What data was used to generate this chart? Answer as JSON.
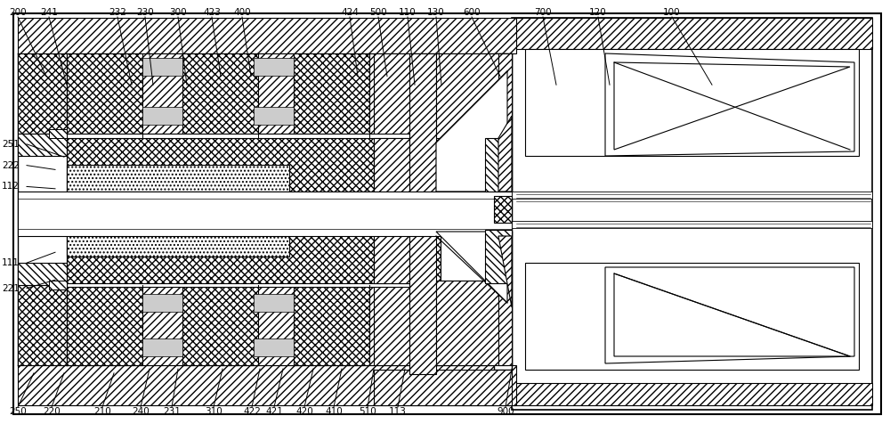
{
  "figure_width": 10.0,
  "figure_height": 4.76,
  "dpi": 100,
  "bg_color": "#ffffff",
  "lc": "#000000",
  "top_labels": [
    {
      "text": "200",
      "xl": 0.02,
      "xt": 0.03,
      "yt": 0.88
    },
    {
      "text": "241",
      "xl": 0.055,
      "xt": 0.065,
      "yt": 0.88
    },
    {
      "text": "232",
      "xl": 0.132,
      "xt": 0.138,
      "yt": 0.88
    },
    {
      "text": "230",
      "xl": 0.163,
      "xt": 0.168,
      "yt": 0.88
    },
    {
      "text": "300",
      "xl": 0.2,
      "xt": 0.205,
      "yt": 0.88
    },
    {
      "text": "423",
      "xl": 0.238,
      "xt": 0.243,
      "yt": 0.88
    },
    {
      "text": "400",
      "xl": 0.272,
      "xt": 0.278,
      "yt": 0.88
    },
    {
      "text": "424",
      "xl": 0.393,
      "xt": 0.398,
      "yt": 0.88
    },
    {
      "text": "500",
      "xl": 0.425,
      "xt": 0.43,
      "yt": 0.88
    },
    {
      "text": "110",
      "xl": 0.458,
      "xt": 0.462,
      "yt": 0.88
    },
    {
      "text": "130",
      "xl": 0.49,
      "xt": 0.493,
      "yt": 0.88
    },
    {
      "text": "600",
      "xl": 0.53,
      "xt": 0.535,
      "yt": 0.88
    },
    {
      "text": "700",
      "xl": 0.61,
      "xt": 0.613,
      "yt": 0.88
    },
    {
      "text": "120",
      "xl": 0.672,
      "xt": 0.675,
      "yt": 0.88
    },
    {
      "text": "100",
      "xl": 0.755,
      "xt": 0.76,
      "yt": 0.88
    }
  ],
  "left_labels": [
    {
      "text": "251",
      "xl": 0.002,
      "yl": 0.68,
      "xt": 0.06,
      "yt": 0.66
    },
    {
      "text": "222",
      "xl": 0.002,
      "yl": 0.62,
      "xt": 0.06,
      "yt": 0.61
    },
    {
      "text": "112",
      "xl": 0.002,
      "yl": 0.56,
      "xt": 0.06,
      "yt": 0.56
    },
    {
      "text": "111",
      "xl": 0.002,
      "yl": 0.27,
      "xt": 0.06,
      "yt": 0.28
    },
    {
      "text": "221",
      "xl": 0.002,
      "yl": 0.2,
      "xt": 0.06,
      "yt": 0.215
    }
  ],
  "bottom_labels": [
    {
      "text": "250",
      "xl": 0.02,
      "xt": 0.035,
      "yt": 0.13
    },
    {
      "text": "220",
      "xl": 0.058,
      "xt": 0.065,
      "yt": 0.13
    },
    {
      "text": "210",
      "xl": 0.115,
      "xt": 0.12,
      "yt": 0.13
    },
    {
      "text": "240",
      "xl": 0.158,
      "xt": 0.163,
      "yt": 0.13
    },
    {
      "text": "231",
      "xl": 0.193,
      "xt": 0.198,
      "yt": 0.13
    },
    {
      "text": "310",
      "xl": 0.24,
      "xt": 0.245,
      "yt": 0.13
    },
    {
      "text": "422",
      "xl": 0.283,
      "xt": 0.288,
      "yt": 0.13
    },
    {
      "text": "421",
      "xl": 0.308,
      "xt": 0.313,
      "yt": 0.13
    },
    {
      "text": "420",
      "xl": 0.342,
      "xt": 0.347,
      "yt": 0.13
    },
    {
      "text": "410",
      "xl": 0.375,
      "xt": 0.38,
      "yt": 0.13
    },
    {
      "text": "510",
      "xl": 0.413,
      "xt": 0.416,
      "yt": 0.13
    },
    {
      "text": "113",
      "xl": 0.447,
      "xt": 0.45,
      "yt": 0.13
    },
    {
      "text": "900",
      "xl": 0.568,
      "xt": 0.572,
      "yt": 0.13
    }
  ]
}
